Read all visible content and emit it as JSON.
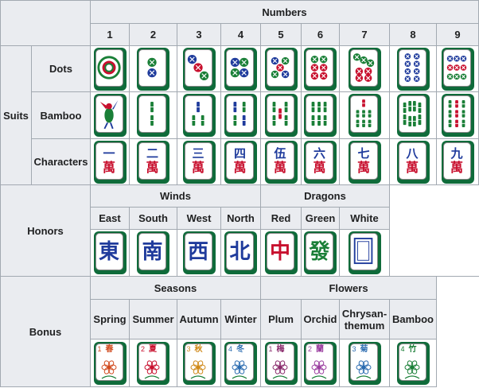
{
  "headers": {
    "numbers": "Numbers",
    "suits": "Suits",
    "honors": "Honors",
    "bonus": "Bonus",
    "winds": "Winds",
    "dragons": "Dragons",
    "seasons": "Seasons",
    "flowers": "Flowers"
  },
  "numbers": [
    "1",
    "2",
    "3",
    "4",
    "5",
    "6",
    "7",
    "8",
    "9"
  ],
  "suits": {
    "dots": "Dots",
    "bamboo": "Bamboo",
    "characters": "Characters"
  },
  "character_numerals": [
    "一",
    "二",
    "三",
    "四",
    "伍",
    "六",
    "七",
    "八",
    "九"
  ],
  "character_wan": "萬",
  "winds": [
    {
      "label": "East",
      "glyph": "東"
    },
    {
      "label": "South",
      "glyph": "南"
    },
    {
      "label": "West",
      "glyph": "西"
    },
    {
      "label": "North",
      "glyph": "北"
    }
  ],
  "dragons": [
    {
      "label": "Red",
      "glyph": "中"
    },
    {
      "label": "Green",
      "glyph": "發"
    },
    {
      "label": "White",
      "glyph": ""
    }
  ],
  "seasons": [
    {
      "label": "Spring",
      "num": "1",
      "glyph": "春"
    },
    {
      "label": "Summer",
      "num": "2",
      "glyph": "夏"
    },
    {
      "label": "Autumn",
      "num": "3",
      "glyph": "秋"
    },
    {
      "label": "Winter",
      "num": "4",
      "glyph": "冬"
    }
  ],
  "flowers": [
    {
      "label": "Plum",
      "num": "1",
      "glyph": "梅"
    },
    {
      "label": "Orchid",
      "num": "2",
      "glyph": "蘭"
    },
    {
      "label": "Chrysan-\nthemum",
      "num": "3",
      "glyph": "菊"
    },
    {
      "label": "Bamboo",
      "num": "4",
      "glyph": "竹"
    }
  ],
  "colors": {
    "header_bg": "#eaecf0",
    "border": "#a2a9b1",
    "tile_back": "#0f6b3a",
    "red": "#c8102e",
    "green": "#1a7f37",
    "blue": "#1f3b9c"
  }
}
